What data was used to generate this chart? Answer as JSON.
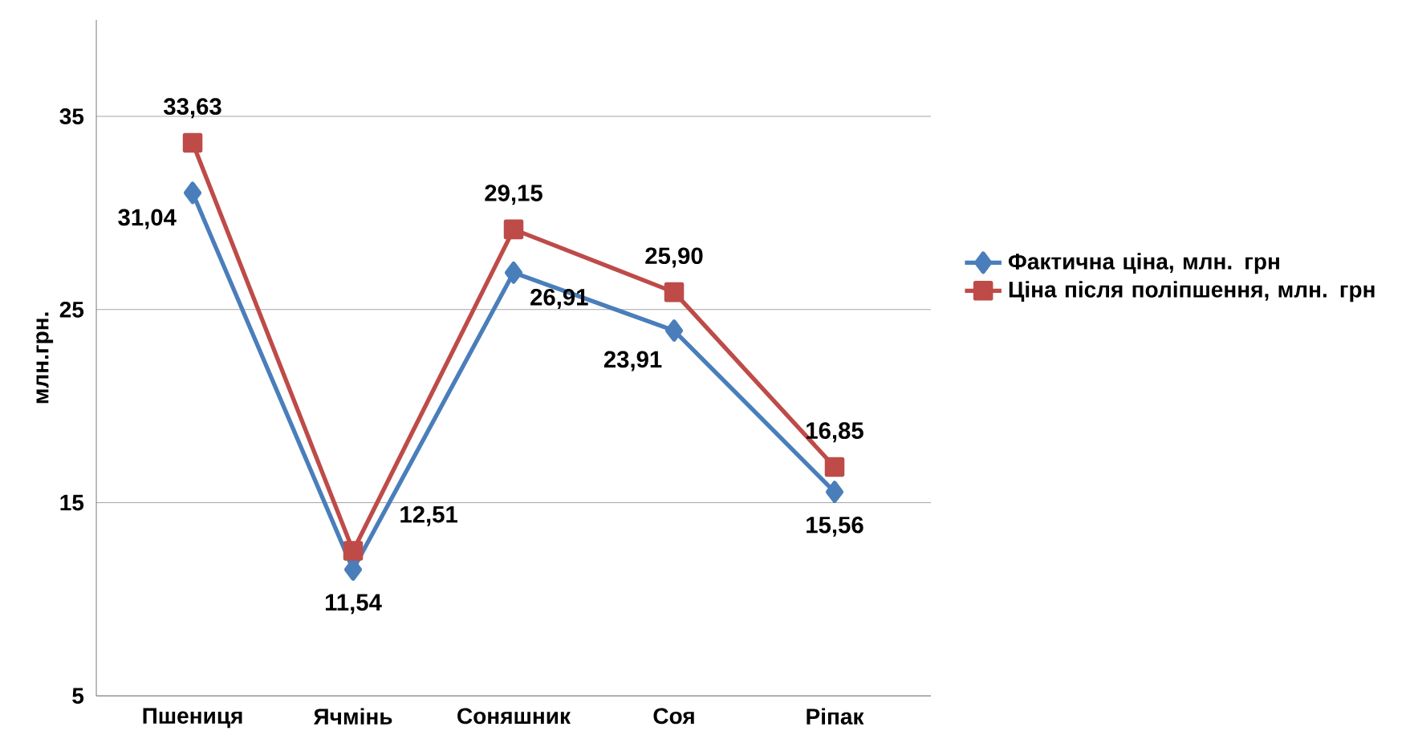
{
  "chart_data": {
    "type": "line",
    "ylabel": "млн.грн.",
    "categories": [
      "Пшениця",
      "Ячмінь",
      "Соняшник",
      "Соя",
      "Ріпак"
    ],
    "ylim": [
      5,
      40
    ],
    "yticks": [
      5,
      15,
      25,
      35
    ],
    "grid": "y",
    "legend": "right",
    "series": [
      {
        "name": "Фактична ціна, млн. грн",
        "color": "#4a7ebb",
        "marker": "diamond",
        "values": [
          31.04,
          11.54,
          26.91,
          23.91,
          15.56
        ],
        "value_labels": [
          "31,04",
          "11,54",
          "26,91",
          "23,91",
          "15,56"
        ]
      },
      {
        "name": "Ціна після поліпшення, млн. грн",
        "color": "#be4b48",
        "marker": "square",
        "values": [
          33.63,
          12.51,
          29.15,
          25.9,
          16.85
        ],
        "value_labels": [
          "33,63",
          "12,51",
          "29,15",
          "25,90",
          "16,85"
        ]
      }
    ]
  }
}
